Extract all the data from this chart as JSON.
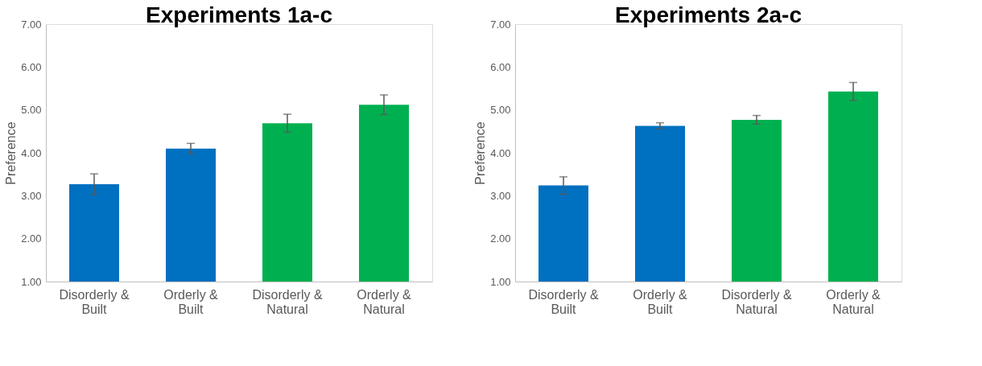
{
  "chart_data": [
    {
      "type": "bar",
      "title": "Experiments 1a-c",
      "ylabel": "Preference",
      "categories": [
        "Disorderly & Built",
        "Orderly & Built",
        "Disorderly & Natural",
        "Orderly & Natural"
      ],
      "values": [
        3.27,
        4.1,
        4.69,
        5.12
      ],
      "colors": [
        "#0070c0",
        "#0070c0",
        "#00b050",
        "#00b050"
      ],
      "errors": [
        0.24,
        0.12,
        0.21,
        0.23
      ],
      "ylim": [
        1,
        7
      ],
      "yticks": [
        {
          "value": 1,
          "label": "1.00"
        },
        {
          "value": 2,
          "label": "2.00"
        },
        {
          "value": 3,
          "label": "3.00"
        },
        {
          "value": 4,
          "label": "4.00"
        },
        {
          "value": 5,
          "label": "5.00"
        },
        {
          "value": 6,
          "label": "6.00"
        },
        {
          "value": 7,
          "label": "7.00"
        }
      ],
      "grid": false
    },
    {
      "type": "bar",
      "title": "Experiments 2a-c",
      "ylabel": "Preference",
      "categories": [
        "Disorderly & Built",
        "Orderly & Built",
        "Disorderly & Natural",
        "Orderly & Natural"
      ],
      "values": [
        3.24,
        4.63,
        4.77,
        5.43
      ],
      "colors": [
        "#0070c0",
        "#0070c0",
        "#00b050",
        "#00b050"
      ],
      "errors": [
        0.2,
        0.07,
        0.1,
        0.21
      ],
      "ylim": [
        1,
        7
      ],
      "yticks": [
        {
          "value": 1,
          "label": "1.00"
        },
        {
          "value": 2,
          "label": "2.00"
        },
        {
          "value": 3,
          "label": "3.00"
        },
        {
          "value": 4,
          "label": "4.00"
        },
        {
          "value": 5,
          "label": "5.00"
        },
        {
          "value": 6,
          "label": "6.00"
        },
        {
          "value": 7,
          "label": "7.00"
        }
      ],
      "grid": false
    }
  ]
}
